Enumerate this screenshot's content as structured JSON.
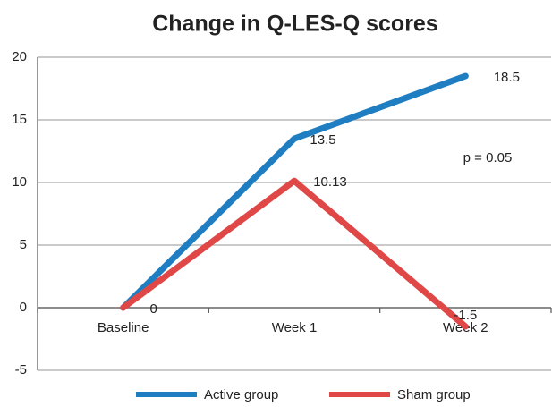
{
  "chart_data": {
    "type": "line",
    "title": "Change in Q-LES-Q scores",
    "categories": [
      "Baseline",
      "Week 1",
      "Week 2"
    ],
    "series": [
      {
        "name": "Active group",
        "color": "#1f7ec2",
        "values": [
          0,
          13.5,
          18.5
        ],
        "value_labels": [
          "0",
          "13.5",
          "18.5"
        ]
      },
      {
        "name": "Sham group",
        "color": "#e04848",
        "values": [
          0,
          10.13,
          -1.5
        ],
        "value_labels": [
          null,
          "10.13",
          "-1.5"
        ]
      }
    ],
    "ylim": [
      -5,
      20
    ],
    "yticks": [
      -5,
      0,
      5,
      10,
      15,
      20
    ],
    "grid": true,
    "annotation": "p = 0.05",
    "legend": "bottom"
  }
}
